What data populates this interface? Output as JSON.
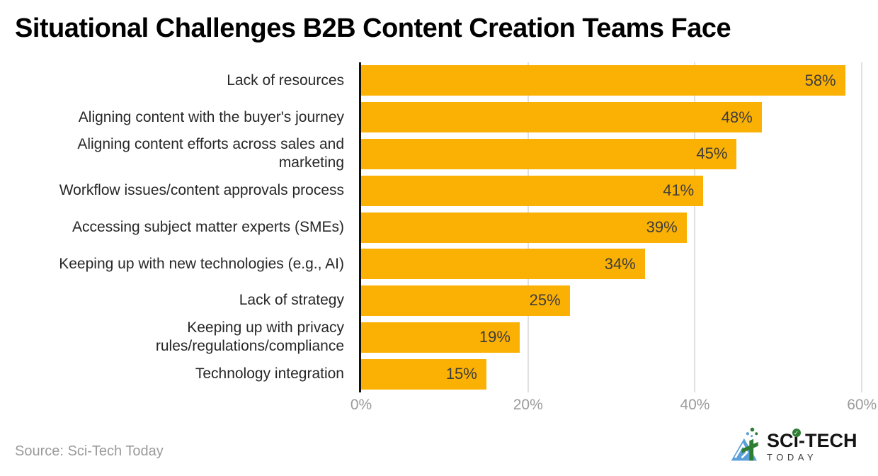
{
  "title": "Situational Challenges B2B Content Creation Teams Face",
  "source_note": "Source: Sci-Tech Today",
  "logo": {
    "name": "Sci-Tech Today",
    "part1": "SC",
    "i_char": "ı",
    "check": "✓",
    "part2": "-TECH",
    "secondary": "TODAY"
  },
  "colors": {
    "bar": "#FBB104",
    "title": "#000000",
    "category_label": "#272727",
    "value_label": "#3C3C3C",
    "axis_label": "#9B9B9B",
    "gridline": "#E0E0E0",
    "axis_line": "#111111",
    "source": "#9A9A9A",
    "logo_green": "#2E7D32",
    "logo_blue": "#5BA0D8"
  },
  "chart_data": {
    "type": "bar",
    "orientation": "horizontal",
    "title": "Situational Challenges B2B Content Creation Teams Face",
    "categories": [
      "Lack of resources",
      "Aligning content with the buyer's journey",
      "Aligning content efforts across sales and\nmarketing",
      "Workflow issues/content approvals process",
      "Accessing subject matter experts (SMEs)",
      "Keeping up with new technologies (e.g., AI)",
      "Lack of strategy",
      "Keeping up with privacy\nrules/regulations/compliance",
      "Technology integration"
    ],
    "values": [
      58,
      48,
      45,
      41,
      39,
      34,
      25,
      19,
      15
    ],
    "value_labels": [
      "58%",
      "48%",
      "45%",
      "41%",
      "39%",
      "34%",
      "25%",
      "19%",
      "15%"
    ],
    "value_suffix": "%",
    "xlabel": "",
    "ylabel": "",
    "x_ticks": [
      0,
      20,
      40,
      60
    ],
    "x_tick_labels": [
      "0%",
      "20%",
      "40%",
      "60%"
    ],
    "xlim": [
      0,
      61
    ],
    "grid": "vertical gridlines at 20, 40, 60",
    "legend": "none",
    "bar_color": "#FBB104",
    "value_label_position": "inside-end"
  }
}
